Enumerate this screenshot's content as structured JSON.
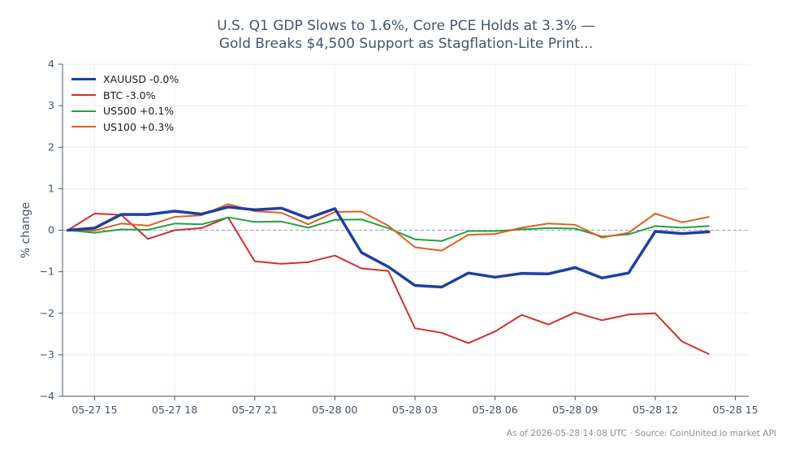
{
  "chart_data": {
    "type": "line",
    "title_lines": [
      "U.S. Q1 GDP Slows to 1.6%, Core PCE Holds at 3.3% —",
      "Gold Breaks $4,500 Support as Stagflation-Lite Print..."
    ],
    "xlabel": "",
    "ylabel": "% change",
    "ylim": [
      -4,
      4
    ],
    "yticks": [
      -4,
      -3,
      -2,
      -1,
      0,
      1,
      2,
      3,
      4
    ],
    "ytick_labels": [
      "−4",
      "−3",
      "−2",
      "−1",
      "0",
      "1",
      "2",
      "3",
      "4"
    ],
    "xlim_hours": [
      13.8,
      39.5
    ],
    "xticks": [
      {
        "hour": 15,
        "label": "05-27 15"
      },
      {
        "hour": 18,
        "label": "05-27 18"
      },
      {
        "hour": 21,
        "label": "05-27 21"
      },
      {
        "hour": 24,
        "label": "05-28 00"
      },
      {
        "hour": 27,
        "label": "05-28 03"
      },
      {
        "hour": 30,
        "label": "05-28 06"
      },
      {
        "hour": 33,
        "label": "05-28 09"
      },
      {
        "hour": 36,
        "label": "05-28 12"
      },
      {
        "hour": 39,
        "label": "05-28 15"
      }
    ],
    "x_hours": [
      14,
      15,
      16,
      17,
      18,
      19,
      20,
      21,
      22,
      23,
      24,
      25,
      26,
      27,
      28,
      29,
      30,
      31,
      32,
      33,
      34,
      35,
      36,
      37,
      38
    ],
    "grid": true,
    "zero_line": true,
    "legend_position": "top-left",
    "series": [
      {
        "name": "XAUUSD -0.0%",
        "color": "#1f3fa0",
        "width": 3.5,
        "values": [
          0.0,
          0.05,
          0.38,
          0.38,
          0.46,
          0.39,
          0.56,
          0.49,
          0.53,
          0.29,
          0.52,
          -0.54,
          -0.88,
          -1.33,
          -1.37,
          -1.03,
          -1.13,
          -1.04,
          -1.05,
          -0.9,
          -1.15,
          -1.03,
          -0.03,
          -0.08,
          -0.04
        ]
      },
      {
        "name": "BTC -3.0%",
        "color": "#d03030",
        "width": 2,
        "values": [
          0.0,
          0.4,
          0.37,
          -0.21,
          0.0,
          0.05,
          0.31,
          -0.75,
          -0.81,
          -0.77,
          -0.61,
          -0.92,
          -0.98,
          -2.36,
          -2.47,
          -2.72,
          -2.44,
          -2.04,
          -2.27,
          -1.98,
          -2.17,
          -2.03,
          -2.0,
          -2.68,
          -2.98
        ]
      },
      {
        "name": "US500 +0.1%",
        "color": "#22a045",
        "width": 2,
        "values": [
          0.0,
          -0.06,
          0.02,
          0.01,
          0.16,
          0.14,
          0.31,
          0.2,
          0.21,
          0.06,
          0.25,
          0.26,
          0.05,
          -0.22,
          -0.26,
          -0.02,
          -0.02,
          0.02,
          0.05,
          0.04,
          -0.15,
          -0.1,
          0.1,
          0.06,
          0.1
        ]
      },
      {
        "name": "US100 +0.3%",
        "color": "#e06020",
        "width": 2,
        "values": [
          0.0,
          -0.01,
          0.16,
          0.11,
          0.32,
          0.36,
          0.63,
          0.46,
          0.42,
          0.14,
          0.44,
          0.45,
          0.11,
          -0.41,
          -0.49,
          -0.11,
          -0.09,
          0.06,
          0.16,
          0.13,
          -0.18,
          -0.06,
          0.4,
          0.19,
          0.32
        ]
      }
    ]
  },
  "footnote": "As of 2026-05-28 14:08 UTC · Source: CoinUnited.io market API"
}
